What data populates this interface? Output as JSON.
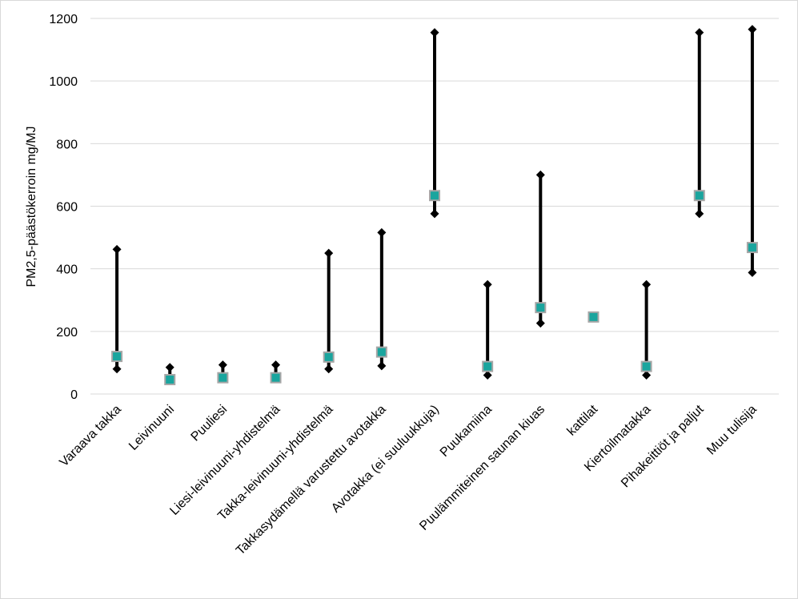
{
  "chart_data": {
    "type": "scatter",
    "variant": "high-low-marker",
    "title": "",
    "xlabel": "",
    "ylabel": "PM2,5-päästökerroin mg/MJ",
    "ylim": [
      0,
      1200
    ],
    "yticks": [
      0,
      200,
      400,
      600,
      800,
      1000,
      1200
    ],
    "grid": true,
    "legend": "none",
    "categories": [
      "Varaava takka",
      "Leivinuuni",
      "Puuliesi",
      "Liesi-leivinuuni-yhdistelmä",
      "Takka-leivinuuni-yhdistelmä",
      "Takkasydämellä varustettu avotakka",
      "Avotakka (ei suuluukkuja)",
      "Puukamiina",
      "Puulämmiteinen saunan kiuas",
      "kattilat",
      "Kiertoilmatakka",
      "Pihakeittiöt ja paljut",
      "Muu tulisija"
    ],
    "series": [
      {
        "name": "",
        "marker": "diamond",
        "role": "max",
        "values": [
          462,
          85,
          93,
          93,
          450,
          516,
          1155,
          350,
          700,
          null,
          350,
          1155,
          1165
        ]
      },
      {
        "name": "",
        "marker": "diamond",
        "role": "min",
        "values": [
          80,
          null,
          null,
          null,
          80,
          90,
          576,
          60,
          226,
          null,
          60,
          576,
          388
        ]
      },
      {
        "name": "",
        "marker": "square",
        "role": "mean",
        "values": [
          120,
          46,
          52,
          52,
          118,
          134,
          634,
          88,
          276,
          246,
          88,
          634,
          468
        ]
      }
    ],
    "colors": {
      "range_line": "#000000",
      "diamond": "#000000",
      "square_fill": "#1aa59e",
      "square_edge": "#a6a6a6",
      "grid": "#d9d9d9"
    }
  }
}
